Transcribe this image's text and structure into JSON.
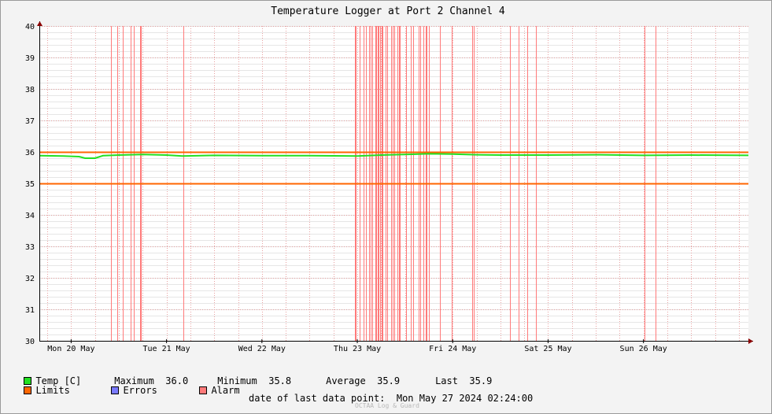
{
  "chart_data": {
    "type": "line",
    "title": "Temperature Logger at Port 2 Channel 4",
    "ylim": [
      30,
      40
    ],
    "yticks": [
      "30",
      "31",
      "32",
      "33",
      "34",
      "35",
      "36",
      "37",
      "38",
      "39",
      "40"
    ],
    "xlim": [
      "2024-05-19T16:00",
      "2024-05-27T02:24"
    ],
    "xticks": [
      {
        "t": "2024-05-20T00:00",
        "label": "Mon 20 May"
      },
      {
        "t": "2024-05-21T00:00",
        "label": "Tue 21 May"
      },
      {
        "t": "2024-05-22T00:00",
        "label": "Wed 22 May"
      },
      {
        "t": "2024-05-23T00:00",
        "label": "Thu 23 May"
      },
      {
        "t": "2024-05-24T00:00",
        "label": "Fri 24 May"
      },
      {
        "t": "2024-05-25T00:00",
        "label": "Sat 25 May"
      },
      {
        "t": "2024-05-26T00:00",
        "label": "Sun 26 May"
      }
    ],
    "grid": true,
    "series": [
      {
        "name": "Temp [C]",
        "color": "#22e022",
        "x": [
          "2024-05-19T16:00",
          "2024-05-19T22:00",
          "2024-05-20T02:00",
          "2024-05-20T03:30",
          "2024-05-20T06:00",
          "2024-05-20T08:00",
          "2024-05-20T12:00",
          "2024-05-20T18:00",
          "2024-05-21T00:00",
          "2024-05-21T04:00",
          "2024-05-21T12:00",
          "2024-05-22T00:00",
          "2024-05-22T12:00",
          "2024-05-23T00:00",
          "2024-05-23T06:00",
          "2024-05-23T12:00",
          "2024-05-23T18:00",
          "2024-05-24T00:00",
          "2024-05-24T06:00",
          "2024-05-24T12:00",
          "2024-05-25T00:00",
          "2024-05-25T12:00",
          "2024-05-26T00:00",
          "2024-05-26T12:00",
          "2024-05-27T02:24"
        ],
        "values": [
          35.88,
          35.87,
          35.85,
          35.8,
          35.8,
          35.88,
          35.9,
          35.92,
          35.9,
          35.87,
          35.89,
          35.88,
          35.88,
          35.87,
          35.9,
          35.92,
          35.94,
          35.93,
          35.91,
          35.9,
          35.9,
          35.91,
          35.89,
          35.9,
          35.89
        ]
      },
      {
        "name": "Limits",
        "color": "#ff6600",
        "values": [
          36.0,
          35.0
        ]
      }
    ],
    "alarms": [
      "2024-05-20T10:00",
      "2024-05-20T11:40",
      "2024-05-20T13:00",
      "2024-05-20T15:00",
      "2024-05-20T15:40",
      "2024-05-20T17:15",
      "2024-05-20T17:30",
      "2024-05-21T04:15",
      "2024-05-22T23:20",
      "2024-05-22T23:35",
      "2024-05-23T00:30",
      "2024-05-23T01:40",
      "2024-05-23T02:10",
      "2024-05-23T03:00",
      "2024-05-23T03:20",
      "2024-05-23T03:50",
      "2024-05-23T04:30",
      "2024-05-23T04:45",
      "2024-05-23T05:10",
      "2024-05-23T05:25",
      "2024-05-23T05:45",
      "2024-05-23T06:10",
      "2024-05-23T06:25",
      "2024-05-23T07:10",
      "2024-05-23T07:30",
      "2024-05-23T08:30",
      "2024-05-23T09:00",
      "2024-05-23T09:20",
      "2024-05-23T10:10",
      "2024-05-23T10:30",
      "2024-05-23T10:45",
      "2024-05-23T12:20",
      "2024-05-23T13:30",
      "2024-05-23T14:00",
      "2024-05-23T15:25",
      "2024-05-23T15:50",
      "2024-05-23T16:40",
      "2024-05-23T17:15",
      "2024-05-23T17:30",
      "2024-05-23T18:00",
      "2024-05-23T20:50",
      "2024-05-23T23:40",
      "2024-05-24T04:50",
      "2024-05-24T05:20",
      "2024-05-24T14:30",
      "2024-05-24T16:40",
      "2024-05-24T18:40",
      "2024-05-24T21:00",
      "2024-05-26T00:15",
      "2024-05-26T03:00"
    ]
  },
  "legend": {
    "temp": {
      "label": "Temp [C]",
      "color": "#22e022"
    },
    "limits": {
      "label": "Limits",
      "color": "#ff6600"
    },
    "errors": {
      "label": "Errors",
      "color": "#7a7aff"
    },
    "alarm": {
      "label": "Alarm",
      "color": "#ff7a7a"
    }
  },
  "stats": {
    "maximum_label": "Maximum",
    "maximum": "36.0",
    "minimum_label": "Minimum",
    "minimum": "35.8",
    "average_label": "Average",
    "average": "35.9",
    "last_label": "Last",
    "last": "35.9"
  },
  "footer": {
    "last_point_label": "date of last data point:",
    "last_point_value": "Mon May 27 2024 02:24:00",
    "watermark": "OCTAA Log & Guard"
  }
}
